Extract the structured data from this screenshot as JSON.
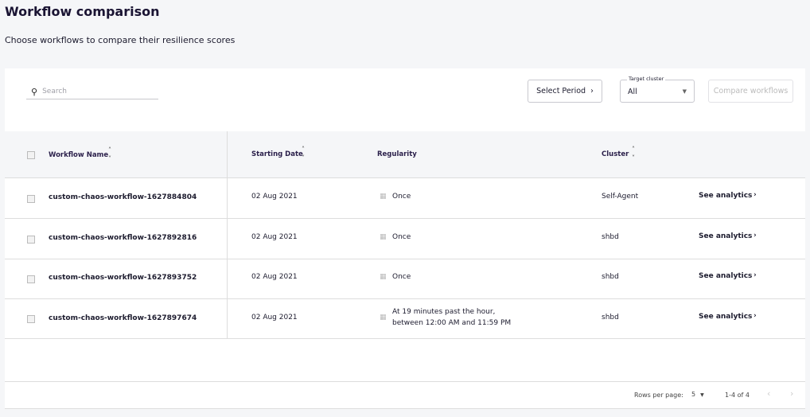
{
  "title": "Workflow comparison",
  "subtitle": "Choose workflows to compare their resilience scores",
  "toolbar": {
    "search_placeholder": "Search",
    "select_period": "Select Period",
    "target_cluster_label": "Target cluster",
    "target_cluster_value": "All",
    "compare_button": "Compare workflows"
  },
  "columns": {
    "name": "Workflow Name",
    "date": "Starting Date",
    "regularity": "Regularity",
    "cluster": "Cluster"
  },
  "rows": [
    {
      "name": "custom-chaos-workflow-1627884804",
      "date": "02 Aug 2021",
      "regularity": "Once",
      "regularity2": "",
      "cluster": "Self-Agent",
      "action": "See analytics"
    },
    {
      "name": "custom-chaos-workflow-1627892816",
      "date": "02 Aug 2021",
      "regularity": "Once",
      "regularity2": "",
      "cluster": "shbd",
      "action": "See analytics"
    },
    {
      "name": "custom-chaos-workflow-1627893752",
      "date": "02 Aug 2021",
      "regularity": "Once",
      "regularity2": "",
      "cluster": "shbd",
      "action": "See analytics"
    },
    {
      "name": "custom-chaos-workflow-1627897674",
      "date": "02 Aug 2021",
      "regularity": "At 19 minutes past the hour,",
      "regularity2": "between 12:00 AM and 11:59 PM",
      "cluster": "shbd",
      "action": "See analytics"
    }
  ],
  "pagination": {
    "rows_per_page_label": "Rows per page:",
    "rows_per_page": "5",
    "range": "1-4 of 4"
  }
}
